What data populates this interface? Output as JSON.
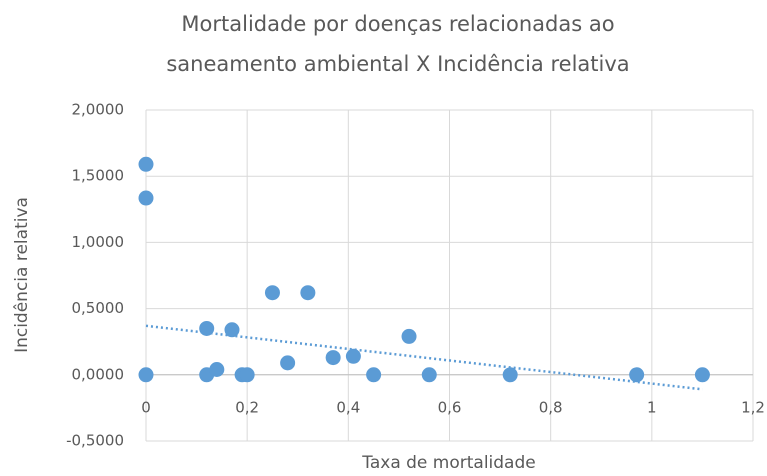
{
  "chart_data": {
    "type": "scatter",
    "title": "Mortalidade por doenças relacionadas ao saneamento ambiental X Incidência relativa",
    "xlabel": "Taxa de mortalidade",
    "ylabel": "Incidência relativa",
    "series": [
      {
        "color": "#5b9bd5",
        "x": [
          0,
          0,
          0,
          0.12,
          0.12,
          0.14,
          0.17,
          0.19,
          0.2,
          0.25,
          0.28,
          0.32,
          0.37,
          0.41,
          0.45,
          0.52,
          0.56,
          0.72,
          0.97,
          1.1
        ],
        "values": [
          1.59,
          1.335,
          0,
          0.35,
          0,
          0.04,
          0.34,
          0,
          0,
          0.62,
          0.09,
          0.62,
          0.13,
          0.14,
          0,
          0.29,
          0,
          0,
          0,
          0
        ]
      }
    ],
    "trendline": {
      "color": "#5b9bd5",
      "x": [
        0,
        1.1
      ],
      "values": [
        0.37,
        -0.11
      ]
    },
    "xlim": [
      0,
      1.2
    ],
    "xticks": [
      0,
      {
        "value": 0.2,
        "label": "0,2"
      },
      {
        "value": 0.4,
        "label": "0,4"
      },
      {
        "value": 0.6,
        "label": "0,6"
      },
      {
        "value": 0.8,
        "label": "0,8"
      },
      1,
      {
        "value": 1.2,
        "label": "1,2"
      }
    ],
    "ylim": [
      -0.5,
      2
    ],
    "yticks": [
      {
        "value": -0.5,
        "label": "-0,5000"
      },
      {
        "value": 0,
        "label": "0,0000"
      },
      {
        "value": 0.5,
        "label": "0,5000"
      },
      {
        "value": 1,
        "label": "1,0000"
      },
      {
        "value": 1.5,
        "label": "1,5000"
      },
      {
        "value": 2,
        "label": "2,0000"
      }
    ],
    "grid": true
  }
}
